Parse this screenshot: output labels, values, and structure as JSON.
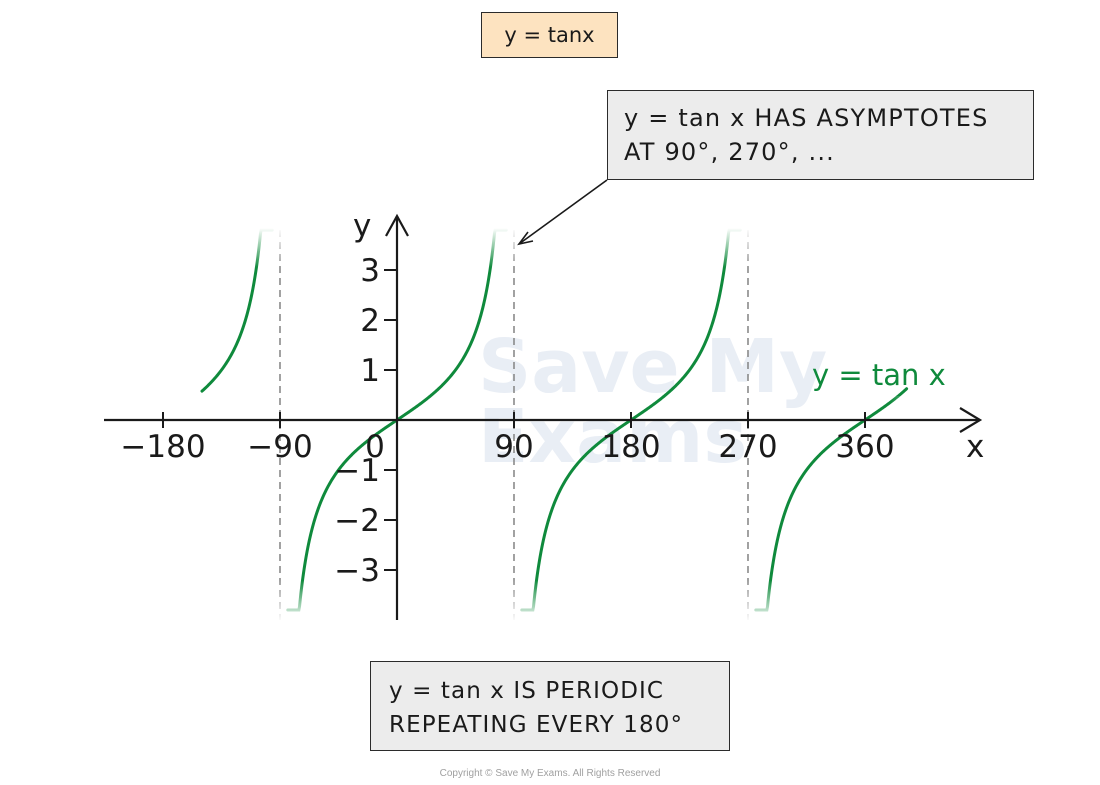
{
  "title": "y = tanx",
  "annotations": {
    "asymptote_line1": "y = tan x  HAS  ASYMPTOTES",
    "asymptote_line2": "AT  90°, 270°, ...",
    "period_line1": "y = tan x  IS  PERIODIC",
    "period_line2": "REPEATING EVERY  180°"
  },
  "copyright": "Copyright © Save My Exams. All Rights Reserved",
  "watermark": [
    "Save My",
    "Exams"
  ],
  "colors": {
    "curve": "#0f8a3c",
    "asymptote": "#8a8a8a",
    "axis": "#1a1a1a",
    "title_bg": "#fde3c0",
    "annotation_bg": "#ececec"
  },
  "chart_data": {
    "type": "line",
    "function": "tan",
    "curve_label": "y = tan x",
    "xlabel": "x",
    "ylabel": "y",
    "xlim": [
      -225,
      405
    ],
    "ylim": [
      -4,
      4
    ],
    "x_ticks": [
      -180,
      -90,
      0,
      90,
      180,
      270,
      360
    ],
    "x_tick_labels": [
      "−180",
      "−90",
      "0",
      "90",
      "180",
      "270",
      "360"
    ],
    "y_ticks": [
      -3,
      -2,
      -1,
      1,
      2,
      3
    ],
    "y_tick_labels": [
      "−3",
      "−2",
      "−1",
      "1",
      "2",
      "3"
    ],
    "asymptotes": [
      -90,
      90,
      270
    ],
    "branches": [
      [
        -150,
        -96
      ],
      [
        -84,
        84
      ],
      [
        96,
        264
      ],
      [
        276,
        392
      ]
    ],
    "grid": false
  }
}
